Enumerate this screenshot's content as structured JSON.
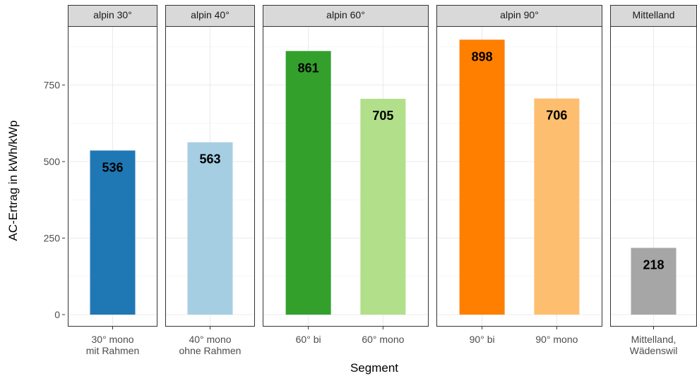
{
  "chart_data": {
    "type": "bar",
    "ylabel": "AC-Ertrag in kWh/kWp",
    "xlabel": "Segment",
    "ylim": [
      0,
      950
    ],
    "yticks": [
      0,
      250,
      500,
      750
    ],
    "grid": true,
    "facets": [
      {
        "label": "alpin 30°",
        "bars": [
          {
            "category": "30° mono\nmit Rahmen",
            "value": 536,
            "label": "536",
            "color": "#1f78b4"
          }
        ]
      },
      {
        "label": "alpin 40°",
        "bars": [
          {
            "category": "40° mono\nohne Rahmen",
            "value": 563,
            "label": "563",
            "color": "#a6cee3"
          }
        ]
      },
      {
        "label": "alpin 60°",
        "bars": [
          {
            "category": "60° bi",
            "value": 861,
            "label": "861",
            "color": "#33a02c"
          },
          {
            "category": "60° mono",
            "value": 705,
            "label": "705",
            "color": "#b2df8a"
          }
        ]
      },
      {
        "label": "alpin 90°",
        "bars": [
          {
            "category": "90° bi",
            "value": 898,
            "label": "898",
            "color": "#ff7f00"
          },
          {
            "category": "90° mono",
            "value": 706,
            "label": "706",
            "color": "#fdbf6f"
          }
        ]
      },
      {
        "label": "Mittelland",
        "bars": [
          {
            "category": "Mittelland,\nWädenswil",
            "value": 218,
            "label": "218",
            "color": "#a6a6a6"
          }
        ]
      }
    ]
  }
}
